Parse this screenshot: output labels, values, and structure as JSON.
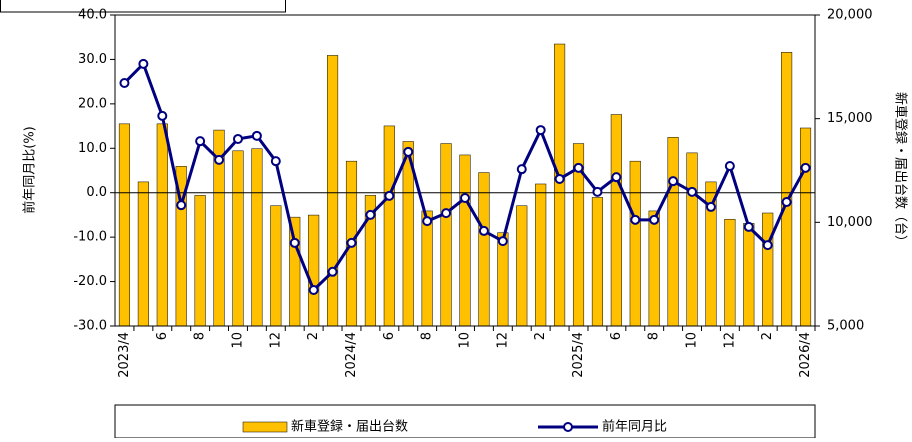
{
  "chart_data": {
    "type": "bar_line",
    "y_label": "前年同月比(%)",
    "y2_label": "新車登録・届出台数（台）",
    "categories": [
      "2023/4",
      null,
      "6",
      null,
      "8",
      null,
      "10",
      null,
      "12",
      null,
      "2",
      null,
      "2024/4",
      null,
      "6",
      null,
      "8",
      null,
      "10",
      null,
      "12",
      null,
      "2",
      null,
      "2025/4",
      null,
      "6",
      null,
      "8",
      null,
      "10",
      null,
      "12",
      null,
      "2",
      null,
      "2026/4"
    ],
    "series": [
      {
        "name": "新車登録・届出台数",
        "type": "bar",
        "axis": "y2",
        "color": "#ffc000",
        "values": [
          14750,
          11950,
          14750,
          12700,
          11300,
          14450,
          13450,
          13550,
          10800,
          10250,
          10350,
          18050,
          12950,
          11300,
          14650,
          13900,
          10550,
          13800,
          13250,
          12400,
          9500,
          10800,
          11850,
          18600,
          13800,
          11200,
          15200,
          12950,
          10550,
          14100,
          13350,
          11950,
          10150,
          9950,
          10450,
          18200,
          14550
        ]
      },
      {
        "name": "前年同月比",
        "type": "line",
        "axis": "y",
        "color": "#000080",
        "values": [
          24.7,
          29.0,
          17.3,
          -2.8,
          11.6,
          7.4,
          12.1,
          12.8,
          7.1,
          -11.3,
          -21.9,
          -17.8,
          -11.3,
          -5.0,
          -0.7,
          9.2,
          -6.4,
          -4.6,
          -1.2,
          -8.6,
          -10.9,
          5.3,
          14.1,
          3.1,
          5.6,
          0.2,
          3.5,
          -6.1,
          -6.1,
          2.6,
          0.2,
          -3.2,
          6.0,
          -7.7,
          -11.8,
          -2.1,
          5.6
        ]
      }
    ],
    "ylim": [
      -30,
      40
    ],
    "yticks": [
      {
        "value": -30,
        "label": "-30.0"
      },
      {
        "value": -20,
        "label": "-20.0"
      },
      {
        "value": -10,
        "label": "-10.0"
      },
      {
        "value": 0,
        "label": "0.0"
      },
      {
        "value": 10,
        "label": "10.0"
      },
      {
        "value": 20,
        "label": "20.0"
      },
      {
        "value": 30,
        "label": "30.0"
      },
      {
        "value": 40,
        "label": "40.0"
      }
    ],
    "y2lim": [
      5000,
      20000
    ],
    "y2ticks": [
      {
        "value": 5000,
        "label": "5,000"
      },
      {
        "value": 10000,
        "label": "10,000"
      },
      {
        "value": 15000,
        "label": "15,000"
      },
      {
        "value": 20000,
        "label": "20,000"
      }
    ]
  }
}
